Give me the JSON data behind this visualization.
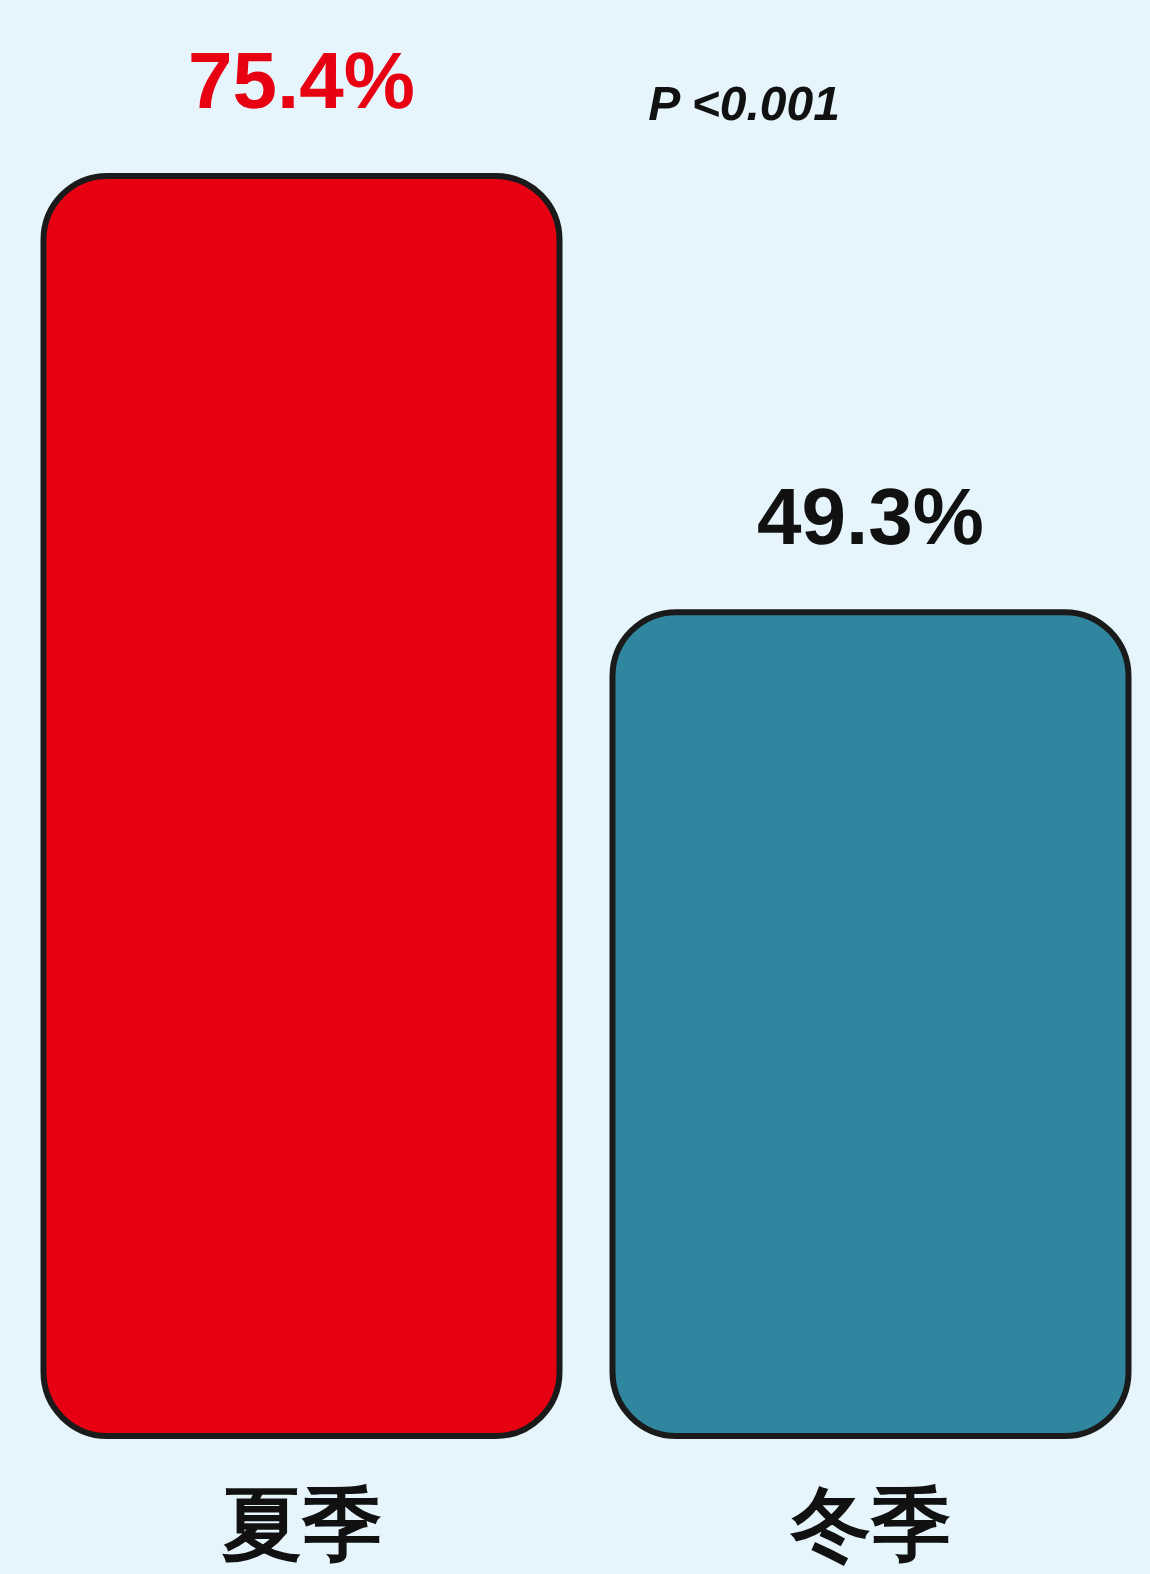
{
  "chart_data": {
    "type": "bar",
    "categories": [
      "夏季",
      "冬季"
    ],
    "values": [
      75.4,
      49.3
    ],
    "colors": [
      "#e60012",
      "#31869f"
    ],
    "value_labels": [
      "75.4%",
      "49.3%"
    ],
    "annotations": [
      "P <0.001"
    ]
  }
}
